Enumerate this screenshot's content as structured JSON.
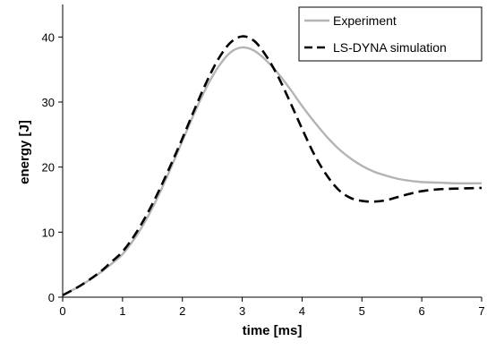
{
  "chart_data": {
    "type": "line",
    "title": "",
    "xlabel": "time [ms]",
    "ylabel": "energy [J]",
    "xlim": [
      0,
      7
    ],
    "ylim": [
      0,
      45
    ],
    "x_ticks": [
      "0",
      "1",
      "2",
      "3",
      "4",
      "5",
      "6",
      "7"
    ],
    "y_ticks": [
      "0",
      "10",
      "20",
      "30",
      "40"
    ],
    "grid": false,
    "legend_position": "top-right",
    "series": [
      {
        "name": "Experiment",
        "color": "#b4b4b4",
        "style": "solid",
        "x": [
          0,
          0.3,
          0.6,
          0.8,
          1.0,
          1.2,
          1.4,
          1.6,
          1.8,
          2.0,
          2.2,
          2.4,
          2.6,
          2.8,
          3.0,
          3.2,
          3.4,
          3.6,
          3.8,
          4.0,
          4.2,
          4.4,
          4.6,
          4.8,
          5.0,
          5.2,
          5.4,
          5.6,
          5.8,
          6.0,
          6.3,
          6.6,
          7.0
        ],
        "y": [
          0.3,
          1.8,
          3.6,
          5.0,
          6.6,
          9.0,
          12.0,
          15.6,
          19.7,
          24.0,
          28.3,
          32.2,
          35.4,
          37.6,
          38.4,
          37.9,
          36.4,
          34.4,
          32.0,
          29.4,
          27.0,
          24.8,
          22.9,
          21.4,
          20.2,
          19.3,
          18.7,
          18.2,
          17.9,
          17.7,
          17.6,
          17.5,
          17.5
        ]
      },
      {
        "name": "LS-DYNA simulation",
        "color": "#000000",
        "style": "dashed",
        "x": [
          0,
          0.3,
          0.6,
          0.8,
          1.0,
          1.2,
          1.4,
          1.6,
          1.8,
          2.0,
          2.2,
          2.4,
          2.6,
          2.8,
          3.0,
          3.2,
          3.4,
          3.6,
          3.8,
          4.0,
          4.2,
          4.4,
          4.6,
          4.8,
          5.0,
          5.2,
          5.4,
          5.6,
          5.8,
          6.0,
          6.3,
          6.6,
          7.0
        ],
        "y": [
          0.3,
          1.8,
          3.7,
          5.3,
          7.0,
          9.5,
          12.6,
          16.2,
          20.2,
          24.4,
          28.8,
          33.0,
          36.6,
          39.1,
          40.1,
          39.4,
          37.1,
          33.9,
          30.0,
          25.9,
          22.0,
          18.9,
          16.6,
          15.3,
          14.8,
          14.7,
          14.9,
          15.4,
          15.9,
          16.3,
          16.6,
          16.7,
          16.8
        ]
      }
    ]
  }
}
